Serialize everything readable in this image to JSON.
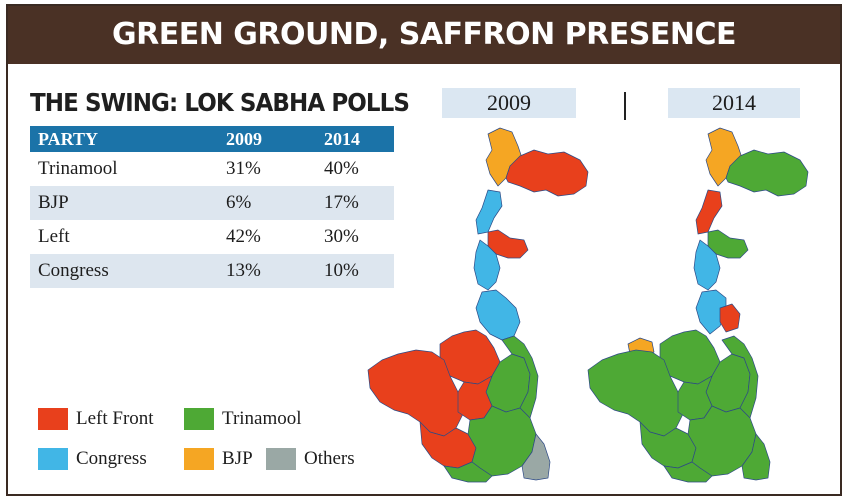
{
  "header": {
    "title": "GREEN GROUND, SAFFRON PRESENCE"
  },
  "subtitle": "THE SWING: LOK SABHA POLLS",
  "table": {
    "headers": [
      "PARTY",
      "2009",
      "2014"
    ],
    "rows": [
      {
        "party": "Trinamool",
        "y2009": "31%",
        "y2014": "40%"
      },
      {
        "party": "BJP",
        "y2009": "6%",
        "y2014": "17%"
      },
      {
        "party": "Left",
        "y2009": "42%",
        "y2014": "30%"
      },
      {
        "party": "Congress",
        "y2009": "13%",
        "y2014": "10%"
      }
    ]
  },
  "maps": [
    {
      "year": "2009"
    },
    {
      "year": "2014"
    }
  ],
  "legend": [
    {
      "label": "Left Front",
      "color": "#e8401c"
    },
    {
      "label": "Trinamool",
      "color": "#4ea935"
    },
    {
      "label": "Congress",
      "color": "#41b6e6"
    },
    {
      "label": "BJP",
      "color": "#f5a623"
    },
    {
      "label": "Others",
      "color": "#9aa8a5"
    }
  ]
}
